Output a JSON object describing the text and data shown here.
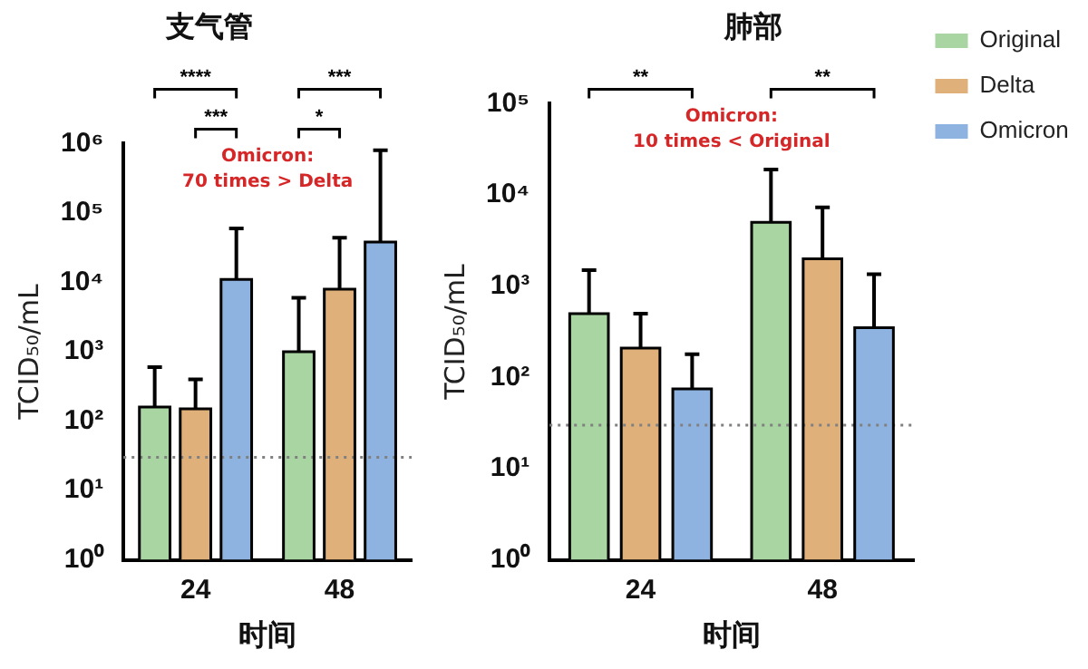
{
  "chart_data": [
    {
      "type": "bar",
      "title": "支气管",
      "xlabel": "时间",
      "ylabel": "TCID₅₀/mL",
      "categories": [
        "24",
        "48"
      ],
      "log": "y",
      "ylim": [
        1,
        1000000
      ],
      "yticks": [
        {
          "value": 1,
          "label": "10⁰"
        },
        {
          "value": 10,
          "label": "10¹"
        },
        {
          "value": 100,
          "label": "10²"
        },
        {
          "value": 1000,
          "label": "10³"
        },
        {
          "value": 10000,
          "label": "10⁴"
        },
        {
          "value": 100000,
          "label": "10⁵"
        },
        {
          "value": 1000000,
          "label": "10⁶"
        }
      ],
      "series": [
        {
          "color": "#a8d5a2",
          "values": [
            160,
            1000
          ],
          "errors": [
            [
              160,
              600
            ],
            [
              1000,
              6000
            ]
          ]
        },
        {
          "color": "#e0b07a",
          "values": [
            150,
            8000
          ],
          "errors": [
            [
              150,
              400
            ],
            [
              8000,
              44000
            ]
          ]
        },
        {
          "color": "#8fb3e0",
          "values": [
            11000,
            38000
          ],
          "errors": [
            [
              11000,
              60000
            ],
            [
              38000,
              800000
            ]
          ]
        }
      ],
      "ref_lines": [
        {
          "axis": "y",
          "value": 30,
          "color": "#808080",
          "line_style": "dotted"
        }
      ],
      "annotations": [
        "****",
        "***",
        "***",
        "*",
        "Omicron: 70 times > Delta"
      ],
      "grid": false,
      "legend": false
    },
    {
      "type": "bar",
      "title": "肺部",
      "xlabel": "时间",
      "ylabel": "TCID₅₀/mL",
      "categories": [
        "24",
        "48"
      ],
      "log": "y",
      "ylim": [
        1,
        100000
      ],
      "yticks": [
        {
          "value": 1,
          "label": "10⁰"
        },
        {
          "value": 10,
          "label": "10¹"
        },
        {
          "value": 100,
          "label": "10²"
        },
        {
          "value": 1000,
          "label": "10³"
        },
        {
          "value": 10000,
          "label": "10⁴"
        },
        {
          "value": 100000,
          "label": "10⁵"
        }
      ],
      "series": [
        {
          "name": "Original",
          "color": "#a8d5a2",
          "values": [
            500,
            5000
          ],
          "errors": [
            [
              500,
              1500
            ],
            [
              5000,
              19000
            ]
          ]
        },
        {
          "name": "Delta",
          "color": "#e0b07a",
          "values": [
            210,
            2000
          ],
          "errors": [
            [
              210,
              500
            ],
            [
              2000,
              7300
            ]
          ]
        },
        {
          "name": "Omicron",
          "color": "#8fb3e0",
          "values": [
            75,
            350
          ],
          "errors": [
            [
              75,
              180
            ],
            [
              350,
              1350
            ]
          ]
        }
      ],
      "ref_lines": [
        {
          "axis": "y",
          "value": 30,
          "color": "#808080",
          "line_style": "dotted"
        }
      ],
      "annotations": [
        "**",
        "**",
        "Omicron: 10 times < Original"
      ],
      "grid": false,
      "legend": "right"
    }
  ]
}
